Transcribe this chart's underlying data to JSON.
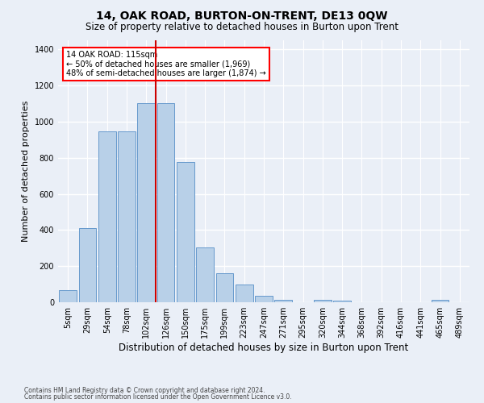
{
  "title": "14, OAK ROAD, BURTON-ON-TRENT, DE13 0QW",
  "subtitle": "Size of property relative to detached houses in Burton upon Trent",
  "xlabel": "Distribution of detached houses by size in Burton upon Trent",
  "ylabel": "Number of detached properties",
  "footer_line1": "Contains HM Land Registry data © Crown copyright and database right 2024.",
  "footer_line2": "Contains public sector information licensed under the Open Government Licence v3.0.",
  "bar_color": "#b8d0e8",
  "bar_edgecolor": "#6699cc",
  "annotation_text": "14 OAK ROAD: 115sqm\n← 50% of detached houses are smaller (1,969)\n48% of semi-detached houses are larger (1,874) →",
  "vline_x": 5,
  "vline_color": "#cc0000",
  "categories": [
    "5sqm",
    "29sqm",
    "54sqm",
    "78sqm",
    "102sqm",
    "126sqm",
    "150sqm",
    "175sqm",
    "199sqm",
    "223sqm",
    "247sqm",
    "271sqm",
    "295sqm",
    "320sqm",
    "344sqm",
    "368sqm",
    "392sqm",
    "416sqm",
    "441sqm",
    "465sqm",
    "489sqm"
  ],
  "values": [
    65,
    410,
    945,
    945,
    1100,
    1100,
    775,
    305,
    160,
    100,
    35,
    15,
    0,
    15,
    10,
    0,
    0,
    0,
    0,
    15,
    0
  ],
  "ylim": [
    0,
    1450
  ],
  "yticks": [
    0,
    200,
    400,
    600,
    800,
    1000,
    1200,
    1400
  ],
  "background_color": "#eaeff7",
  "grid_color": "#ffffff",
  "title_fontsize": 10,
  "subtitle_fontsize": 8.5,
  "xlabel_fontsize": 8.5,
  "ylabel_fontsize": 8
}
